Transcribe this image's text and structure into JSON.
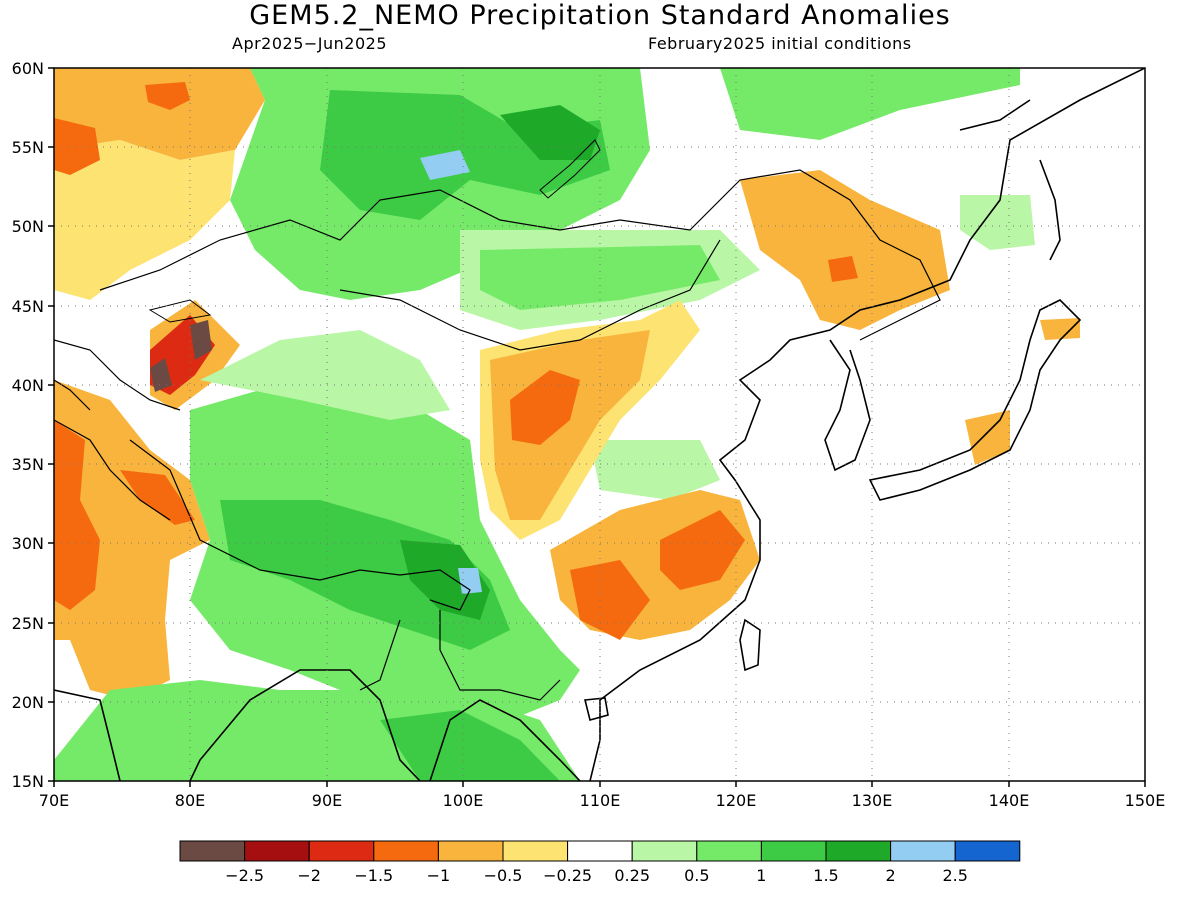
{
  "title": "GEM5.2_NEMO Precipitation Standard Anomalies",
  "subtitle_left": "Apr2025−Jun2025",
  "subtitle_right": "February2025 initial conditions",
  "lat_labels": [
    "60N",
    "55N",
    "50N",
    "45N",
    "40N",
    "35N",
    "30N",
    "25N",
    "20N",
    "15N"
  ],
  "lon_labels": [
    "70E",
    "80E",
    "90E",
    "100E",
    "110E",
    "120E",
    "130E",
    "140E",
    "150E"
  ],
  "colorbar": {
    "colors": [
      "#6b4a44",
      "#a50f0f",
      "#dd2a12",
      "#f56a0f",
      "#f8b43c",
      "#fde372",
      "#ffffff",
      "#b9f6a6",
      "#75ea69",
      "#3dcb45",
      "#1fa928",
      "#93cdf2",
      "#1565d1"
    ],
    "labels": [
      "−2.5",
      "−2",
      "−1.5",
      "−1",
      "−0.5",
      "−0.25",
      "0.25",
      "0.5",
      "1",
      "1.5",
      "2",
      "2.5"
    ]
  },
  "palette": {
    "dry_strong": "#dd2a12",
    "dry_mod": "#f56a0f",
    "dry_weak": "#f8b43c",
    "dry_slight": "#fde372",
    "wet_slight": "#b9f6a6",
    "wet_weak": "#75ea69",
    "wet_mod": "#3dcb45",
    "wet_strong": "#1fa928",
    "wet_extreme": "#93cdf2",
    "dry_extreme": "#6b4a44"
  }
}
